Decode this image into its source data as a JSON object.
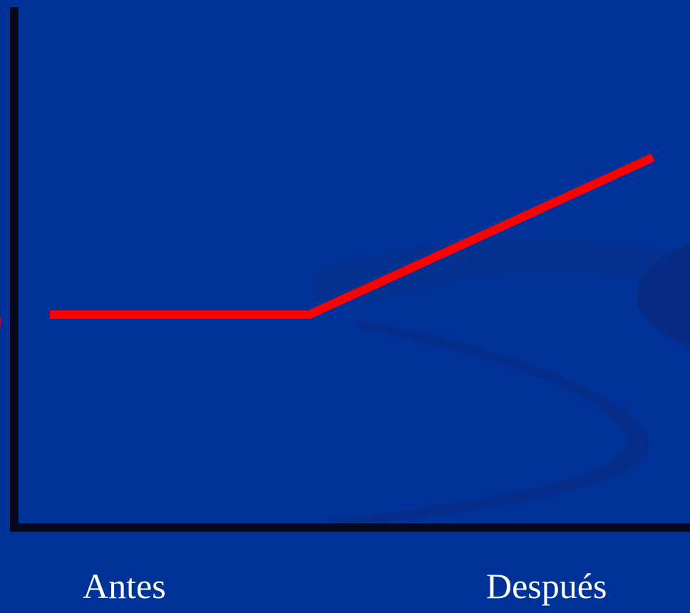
{
  "colors": {
    "background": "#00339a",
    "axis": "#050a1c",
    "line": "#ff0000"
  },
  "chart_data": {
    "type": "line",
    "title": "",
    "xlabel": "",
    "ylabel": "",
    "categories": [
      "Antes",
      "Después"
    ],
    "grid": false,
    "legend": "none",
    "series": [
      {
        "points": [
          {
            "x": 0.0,
            "y": 1.0
          },
          {
            "x": 0.43,
            "y": 1.0
          },
          {
            "x": 1.0,
            "y": 1.5
          }
        ]
      }
    ],
    "xlim": [
      0,
      1
    ],
    "ylim": [
      0,
      2
    ]
  }
}
